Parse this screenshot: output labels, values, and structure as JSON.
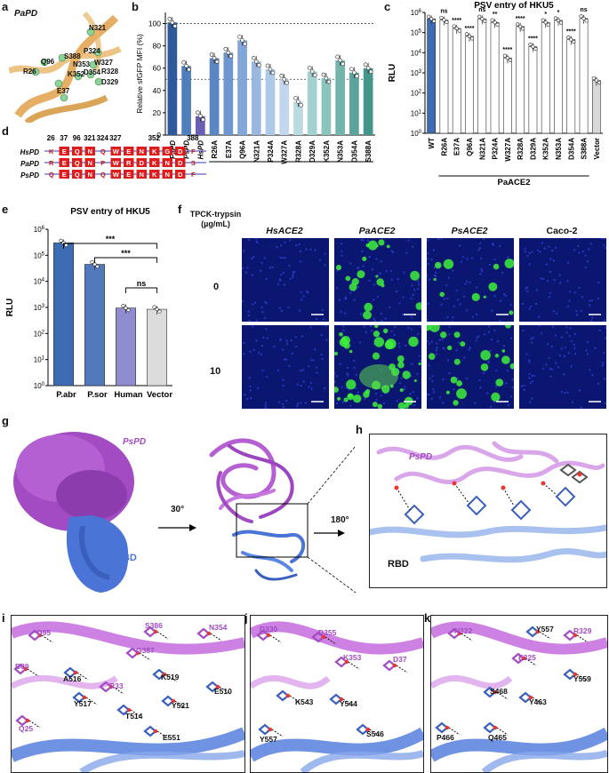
{
  "panels": {
    "a": {
      "letter": "a",
      "title": "PaPD",
      "residues": [
        "N321",
        "P324",
        "Q96",
        "S388",
        "W327",
        "N353",
        "R26",
        "K352",
        "D354",
        "R328",
        "D329",
        "E37"
      ]
    },
    "b": {
      "letter": "b",
      "ylabel": "Relative sfGFP MFI (%)",
      "group_label": "PaPD"
    },
    "c": {
      "letter": "c",
      "title": "PSV entry of HKU5",
      "ylabel": "RLU",
      "group_label": "PaACE2"
    },
    "d": {
      "letter": "d",
      "positions": [
        "26",
        "37",
        "96",
        "321",
        "324",
        "327",
        "352",
        "388"
      ],
      "rows": [
        {
          "name": "HsPD",
          "seq": "K E Q N Q W E N K G D F"
        },
        {
          "name": "PaPD",
          "seq": "R E Q N P W R D K N D S"
        },
        {
          "name": "PsPD",
          "seq": "Q E Q N Q W E N K N D F"
        }
      ]
    },
    "e": {
      "letter": "e",
      "title": "PSV entry of HKU5",
      "ylabel": "RLU"
    },
    "f": {
      "letter": "f",
      "row_header": "TPCK-trypsin (µg/mL)",
      "columns": [
        "HsACE2",
        "PaACE2",
        "PsACE2",
        "Caco-2"
      ],
      "rows": [
        "0",
        "10"
      ]
    },
    "g": {
      "letter": "g",
      "pspd_label": "PsPD",
      "rbd_label": "RBD",
      "rot1": "30°"
    },
    "h": {
      "letter": "h",
      "pspd_label": "PsPD",
      "rbd_label": "RBD",
      "rot2": "180°"
    },
    "i": {
      "letter": "i",
      "labels": [
        "Q95",
        "S386",
        "N354",
        "G387",
        "D89",
        "A516",
        "K519",
        "R33",
        "E510",
        "Y517",
        "Y521",
        "T514",
        "Q25",
        "E551"
      ]
    },
    "j": {
      "letter": "j",
      "labels": [
        "D330",
        "D355",
        "K353",
        "D37",
        "K543",
        "Y544",
        "Y557",
        "S546"
      ]
    },
    "k": {
      "letter": "k",
      "labels": [
        "N322",
        "Y557",
        "R329",
        "E325",
        "Y559",
        "S468",
        "Y463",
        "P466",
        "Q465"
      ]
    }
  },
  "chart_data": [
    {
      "type": "bar",
      "panel": "b",
      "title": "",
      "ylabel": "Relative sfGFP MFI (%)",
      "ylim": [
        0,
        110
      ],
      "yticks": [
        0,
        20,
        40,
        60,
        80,
        100
      ],
      "reference_lines": [
        100,
        50
      ],
      "categories": [
        "PaPD",
        "PsPD",
        "HsPD",
        "R26A",
        "E37A",
        "Q96A",
        "N321A",
        "P324A",
        "W327A",
        "R328A",
        "D329A",
        "K352A",
        "N353A",
        "D354A",
        "S388A"
      ],
      "values": [
        101,
        62,
        17,
        69,
        74,
        85,
        66,
        59,
        50,
        30,
        57,
        51,
        67,
        56,
        60
      ],
      "colors": [
        "#2e5a9c",
        "#4f7fba",
        "#6a5fb4",
        "#5b86c4",
        "#6f97cf",
        "#82a6d7",
        "#99b8df",
        "#aec8e7",
        "#c2d6ee",
        "#b9dce0",
        "#a3d1cf",
        "#8bc3bd",
        "#73b4ac",
        "#5ca49b",
        "#44958a"
      ],
      "group_label": "PaPD"
    },
    {
      "type": "bar",
      "panel": "c",
      "title": "PSV entry of HKU5",
      "ylabel": "RLU",
      "yscale": "log",
      "ylim": [
        1,
        1000000
      ],
      "yticks": [
        "10^0",
        "10^1",
        "10^2",
        "10^3",
        "10^4",
        "10^5",
        "10^6"
      ],
      "categories": [
        "WT",
        "R26A",
        "E37A",
        "Q96A",
        "N321A",
        "P324A",
        "W327A",
        "R328A",
        "D329A",
        "K352A",
        "N353A",
        "D354A",
        "S388A",
        "Vector"
      ],
      "values": [
        480000,
        420000,
        160000,
        65000,
        480000,
        320000,
        5500,
        200000,
        20000,
        320000,
        400000,
        45000,
        500000,
        420
      ],
      "significance": [
        "",
        "ns",
        "****",
        "****",
        "ns",
        "**",
        "****",
        "****",
        "****",
        "*",
        "*",
        "****",
        "ns",
        ""
      ],
      "group_label": "PaACE2"
    },
    {
      "type": "bar",
      "panel": "e",
      "title": "PSV entry of HKU5",
      "ylabel": "RLU",
      "yscale": "log",
      "ylim": [
        1,
        1000000
      ],
      "yticks": [
        "10^0",
        "10^1",
        "10^2",
        "10^3",
        "10^4",
        "10^5",
        "10^6"
      ],
      "categories": [
        "P.abr",
        "P.sor",
        "Human",
        "Vector"
      ],
      "values": [
        300000,
        45000,
        950,
        850
      ],
      "colors": [
        "#3d6cb5",
        "#5379bd",
        "#8f8cd0",
        "#dcdcdc"
      ],
      "significance": [
        {
          "pair": [
            "P.abr",
            "Vector"
          ],
          "label": "***"
        },
        {
          "pair": [
            "P.sor",
            "Vector"
          ],
          "label": "***"
        },
        {
          "pair": [
            "Human",
            "Vector"
          ],
          "label": "ns"
        }
      ]
    }
  ]
}
